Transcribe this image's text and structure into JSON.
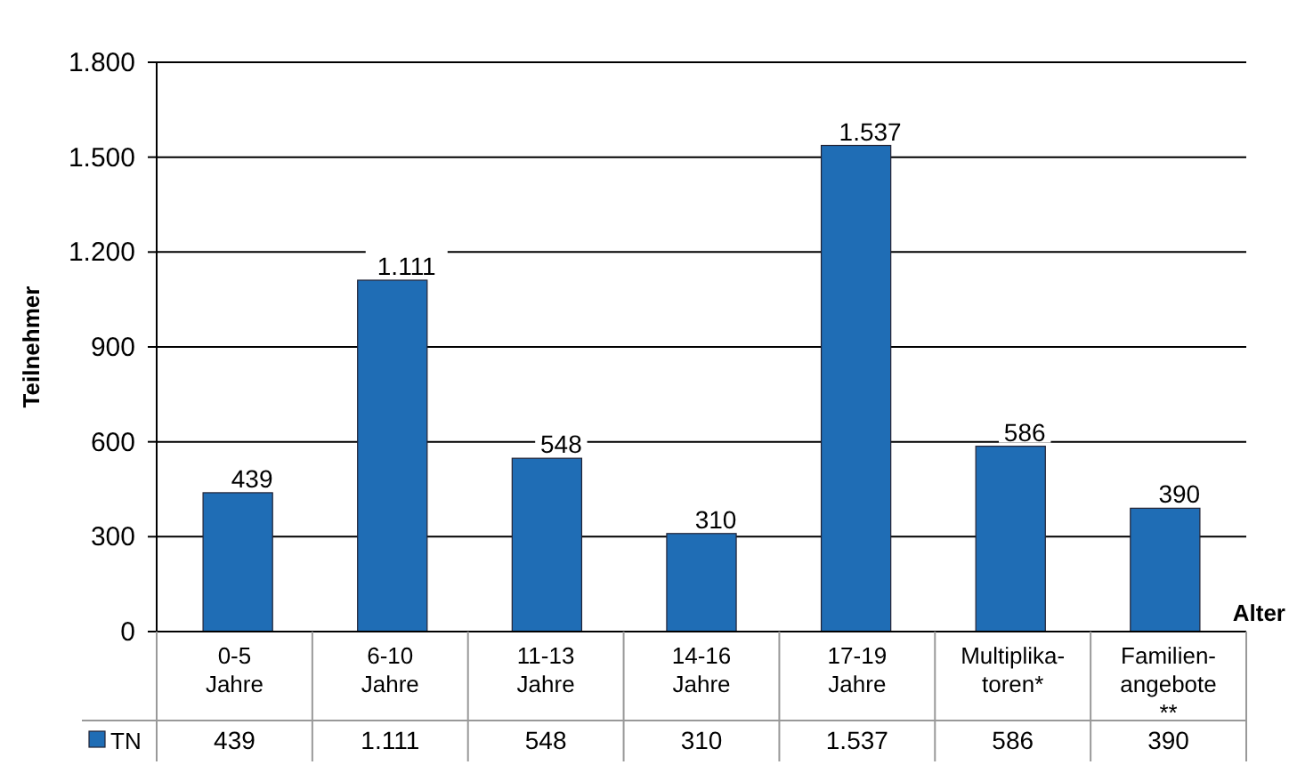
{
  "chart_data": {
    "type": "bar",
    "ylabel": "Teilnehmer",
    "xlabel": "Alter",
    "categories": [
      "0-5\nJahre",
      "6-10\nJahre",
      "11-13\nJahre",
      "14-16\nJahre",
      "17-19\nJahre",
      "Multiplika-\ntoren*",
      "Familien-\nangebote\n**"
    ],
    "series": [
      {
        "name": "TN",
        "color": "#1f6db5",
        "values": [
          439,
          1111,
          548,
          310,
          1537,
          586,
          390
        ],
        "value_labels": [
          "439",
          "1.111",
          "548",
          "310",
          "1.537",
          "586",
          "390"
        ]
      }
    ],
    "ylim": [
      0,
      1800
    ],
    "yticks": [
      0,
      {
        "value": 300,
        "label": "300"
      },
      {
        "value": 600,
        "label": "600"
      },
      {
        "value": 900,
        "label": "900"
      },
      {
        "value": 1200,
        "label": "1.200"
      },
      {
        "value": 1500,
        "label": "1.500"
      },
      {
        "value": 1800,
        "label": "1.800"
      }
    ],
    "grid": "y",
    "legend": "bottom"
  }
}
